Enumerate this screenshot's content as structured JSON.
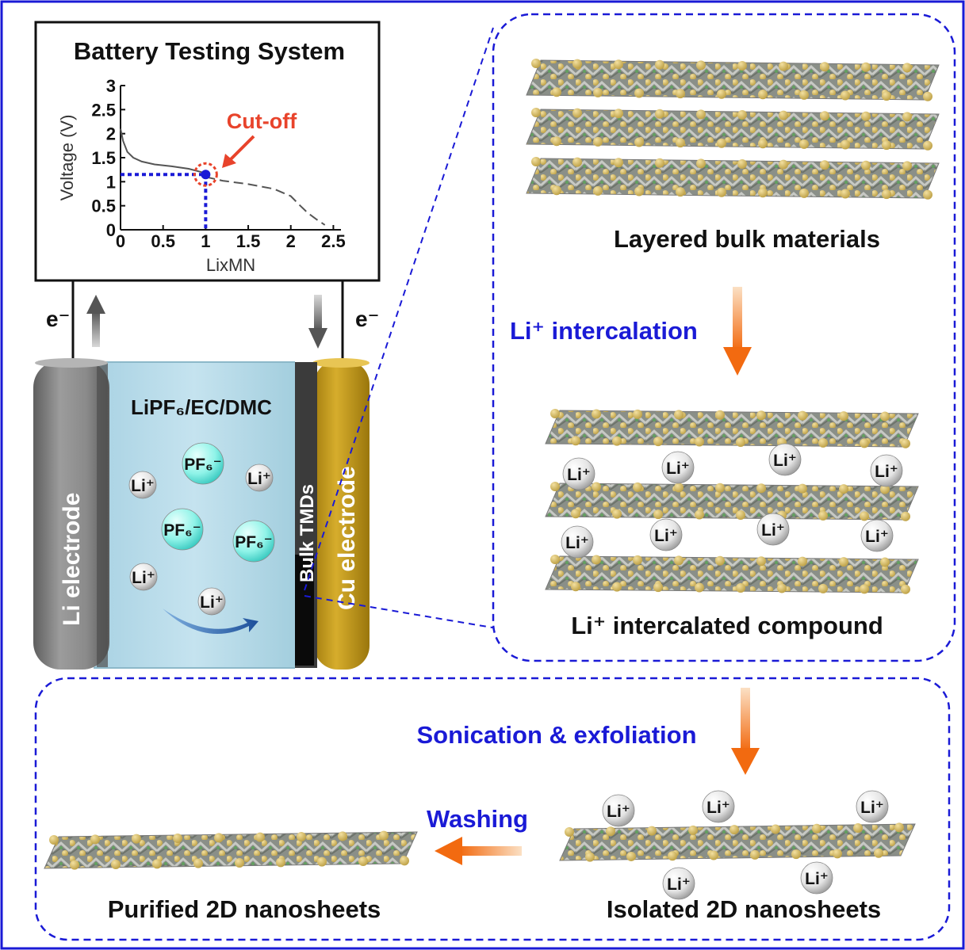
{
  "colors": {
    "frame": "#1a1ad6",
    "dashed_panel": "#1a1ad6",
    "blue_text": "#1a1ad6",
    "cutoff_red": "#e8432b",
    "orange_arrow": "#f07a1a",
    "electrolyte": "#b9dcea",
    "li_electrode": "#8a8a8a",
    "cu_electrode": "#c9a020",
    "tmd_dark": "#1a1a1a",
    "pf6_ion": "#7ff0e6"
  },
  "battery_tester": {
    "title": "Battery Testing System",
    "cutoff_label": "Cut-off"
  },
  "chart_data": {
    "type": "line",
    "title": "",
    "xlabel": "LixMN",
    "ylabel": "Voltage (V)",
    "xlim": [
      0,
      2.5
    ],
    "ylim": [
      0,
      3
    ],
    "x_ticks": [
      "0",
      "0.5",
      "1",
      "1.5",
      "2",
      "2.5"
    ],
    "y_ticks": [
      "0",
      "0.5",
      "1",
      "1.5",
      "2",
      "2.5",
      "3"
    ],
    "series": [
      {
        "style": "solid",
        "x": [
          0.0,
          0.03,
          0.08,
          0.15,
          0.25,
          0.4,
          0.6,
          0.8,
          0.95,
          1.0
        ],
        "y": [
          2.1,
          1.85,
          1.62,
          1.5,
          1.42,
          1.36,
          1.32,
          1.27,
          1.2,
          1.15
        ]
      },
      {
        "style": "dashed",
        "x": [
          1.0,
          1.2,
          1.5,
          1.8,
          2.0,
          2.1,
          2.2,
          2.3,
          2.4
        ],
        "y": [
          1.1,
          1.02,
          0.95,
          0.85,
          0.7,
          0.52,
          0.35,
          0.22,
          0.1
        ]
      }
    ],
    "cutoff_point": {
      "x": 1.0,
      "y": 1.15
    }
  },
  "cell": {
    "electron_left": "e⁻",
    "electron_right": "e⁻",
    "li_electrode_label": "Li electrode",
    "cu_electrode_label": "Cu electrode",
    "bulk_tmd_label": "Bulk TMDs",
    "electrolyte_label": "LiPF₆/EC/DMC",
    "ions": [
      {
        "label": "PF₆⁻",
        "kind": "pf6"
      },
      {
        "label": "Li⁺",
        "kind": "li"
      },
      {
        "label": "Li⁺",
        "kind": "li"
      },
      {
        "label": "PF₆⁻",
        "kind": "pf6"
      },
      {
        "label": "PF₆⁻",
        "kind": "pf6"
      },
      {
        "label": "Li⁺",
        "kind": "li"
      },
      {
        "label": "Li⁺",
        "kind": "li"
      }
    ]
  },
  "process": {
    "layered_bulk": "Layered bulk materials",
    "intercalation_step": "Li⁺ intercalation",
    "intercalated_compound": "Li⁺ intercalated compound",
    "sonication_step": "Sonication & exfoliation",
    "isolated_label": "Isolated 2D nanosheets",
    "washing_step": "Washing",
    "purified_label": "Purified 2D nanosheets",
    "li_ion_label": "Li⁺"
  }
}
